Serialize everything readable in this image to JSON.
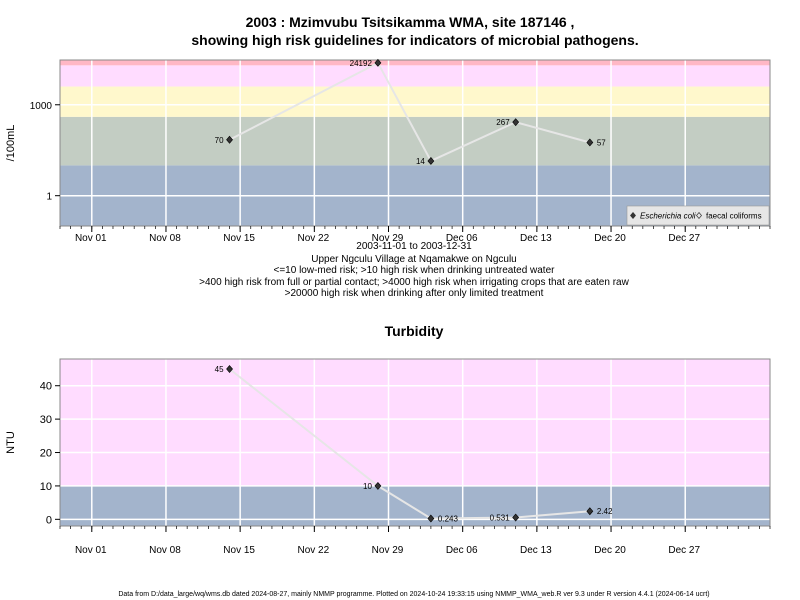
{
  "chart_data": [
    {
      "type": "scatter",
      "title_line1": "2003 : Mzimvubu Tsitsikamma WMA, site 187146 ,",
      "title_line2": "showing high risk guidelines for indicators of microbial pathogens.",
      "ylabel": "/100mL",
      "y_scale": "log10",
      "ylim": [
        0.1,
        30000
      ],
      "xlim": [
        "2003-10-29",
        "2004-01-04"
      ],
      "x_ticks": [
        {
          "date": "2003-11-01",
          "label": "Nov 01"
        },
        {
          "date": "2003-11-08",
          "label": "Nov 08"
        },
        {
          "date": "2003-11-15",
          "label": "Nov 15"
        },
        {
          "date": "2003-11-22",
          "label": "Nov 22"
        },
        {
          "date": "2003-11-29",
          "label": "Nov 29"
        },
        {
          "date": "2003-12-06",
          "label": "Dec 06"
        },
        {
          "date": "2003-12-13",
          "label": "Dec 13"
        },
        {
          "date": "2003-12-20",
          "label": "Dec 20"
        },
        {
          "date": "2003-12-27",
          "label": "Dec 27"
        }
      ],
      "y_ticks": [
        {
          "value": 1,
          "label": "1"
        },
        {
          "value": 1000,
          "label": "1000"
        }
      ],
      "bands": [
        {
          "from": 0.1,
          "to": 10,
          "color": "#a3b4cc"
        },
        {
          "from": 10,
          "to": 400,
          "color": "#c3cdc3"
        },
        {
          "from": 400,
          "to": 4000,
          "color": "#fff8cc"
        },
        {
          "from": 4000,
          "to": 20000,
          "color": "#ffdcff"
        },
        {
          "from": 20000,
          "to": 30000,
          "color": "#ffb7c5"
        }
      ],
      "gridlines": true,
      "grid_color": "#ffffff",
      "line_color": "#e6e6e6",
      "marker_color": "#333333",
      "legend_position": "bottom-right",
      "legend": [
        {
          "label": "Escherichia coli",
          "marker": "filled-diamond",
          "italic": true
        },
        {
          "label": "faecal coliforms",
          "marker": "open-diamond",
          "italic": false
        }
      ],
      "series": [
        {
          "name": "Escherichia coli",
          "points": [
            {
              "x": "2003-11-14",
              "y": 70,
              "label": "70",
              "label_side": "left"
            },
            {
              "x": "2003-11-28",
              "y": 24192,
              "label": "24192",
              "label_side": "left"
            },
            {
              "x": "2003-12-03",
              "y": 14,
              "label": "14",
              "label_side": "left"
            },
            {
              "x": "2003-12-11",
              "y": 267,
              "label": "267",
              "label_side": "left"
            },
            {
              "x": "2003-12-18",
              "y": 57,
              "label": "57",
              "label_side": "right"
            }
          ]
        }
      ],
      "captions": [
        "2003-11-01 to 2003-12-31",
        "Upper Ngculu Village at Nqamakwe on Ngculu",
        "<=10 low-med risk; >10 high risk when drinking untreated water",
        ">400 high risk from full or partial contact; >4000 high risk when irrigating crops that are eaten raw",
        ">20000 high risk when drinking after only limited treatment"
      ]
    },
    {
      "type": "scatter",
      "title": "Turbidity",
      "ylabel": "NTU",
      "ylim": [
        -2,
        48
      ],
      "xlim": [
        "2003-10-29",
        "2004-01-04"
      ],
      "x_ticks": [
        {
          "date": "2003-11-01",
          "label": "Nov 01"
        },
        {
          "date": "2003-11-08",
          "label": "Nov 08"
        },
        {
          "date": "2003-11-15",
          "label": "Nov 15"
        },
        {
          "date": "2003-11-22",
          "label": "Nov 22"
        },
        {
          "date": "2003-11-29",
          "label": "Nov 29"
        },
        {
          "date": "2003-12-06",
          "label": "Dec 06"
        },
        {
          "date": "2003-12-13",
          "label": "Dec 13"
        },
        {
          "date": "2003-12-20",
          "label": "Dec 20"
        },
        {
          "date": "2003-12-27",
          "label": "Dec 27"
        }
      ],
      "y_ticks": [
        {
          "value": 0,
          "label": "0"
        },
        {
          "value": 10,
          "label": "10"
        },
        {
          "value": 20,
          "label": "20"
        },
        {
          "value": 30,
          "label": "30"
        },
        {
          "value": 40,
          "label": "40"
        }
      ],
      "bands": [
        {
          "from": -2,
          "to": 10,
          "color": "#a3b4cc"
        },
        {
          "from": 10,
          "to": 48,
          "color": "#ffdcff"
        }
      ],
      "gridlines": true,
      "grid_color": "#ffffff",
      "line_color": "#e6e6e6",
      "marker_color": "#333333",
      "series": [
        {
          "points": [
            {
              "x": "2003-11-14",
              "y": 45,
              "label": "45",
              "label_side": "left"
            },
            {
              "x": "2003-11-28",
              "y": 10,
              "label": "10",
              "label_side": "left"
            },
            {
              "x": "2003-12-03",
              "y": 0.243,
              "label": "0.243",
              "label_side": "right"
            },
            {
              "x": "2003-12-11",
              "y": 0.531,
              "label": "0.531",
              "label_side": "left"
            },
            {
              "x": "2003-12-18",
              "y": 2.42,
              "label": "2.42",
              "label_side": "right"
            }
          ]
        }
      ]
    }
  ],
  "footer": "Data from D:/data_large/wq/wms.db dated 2024-08-27, mainly NMMP programme. Plotted on 2024-10-24 19:33:15 using NMMP_WMA_web.R ver 9.3 under R version 4.4.1 (2024-06-14 ucrt)"
}
